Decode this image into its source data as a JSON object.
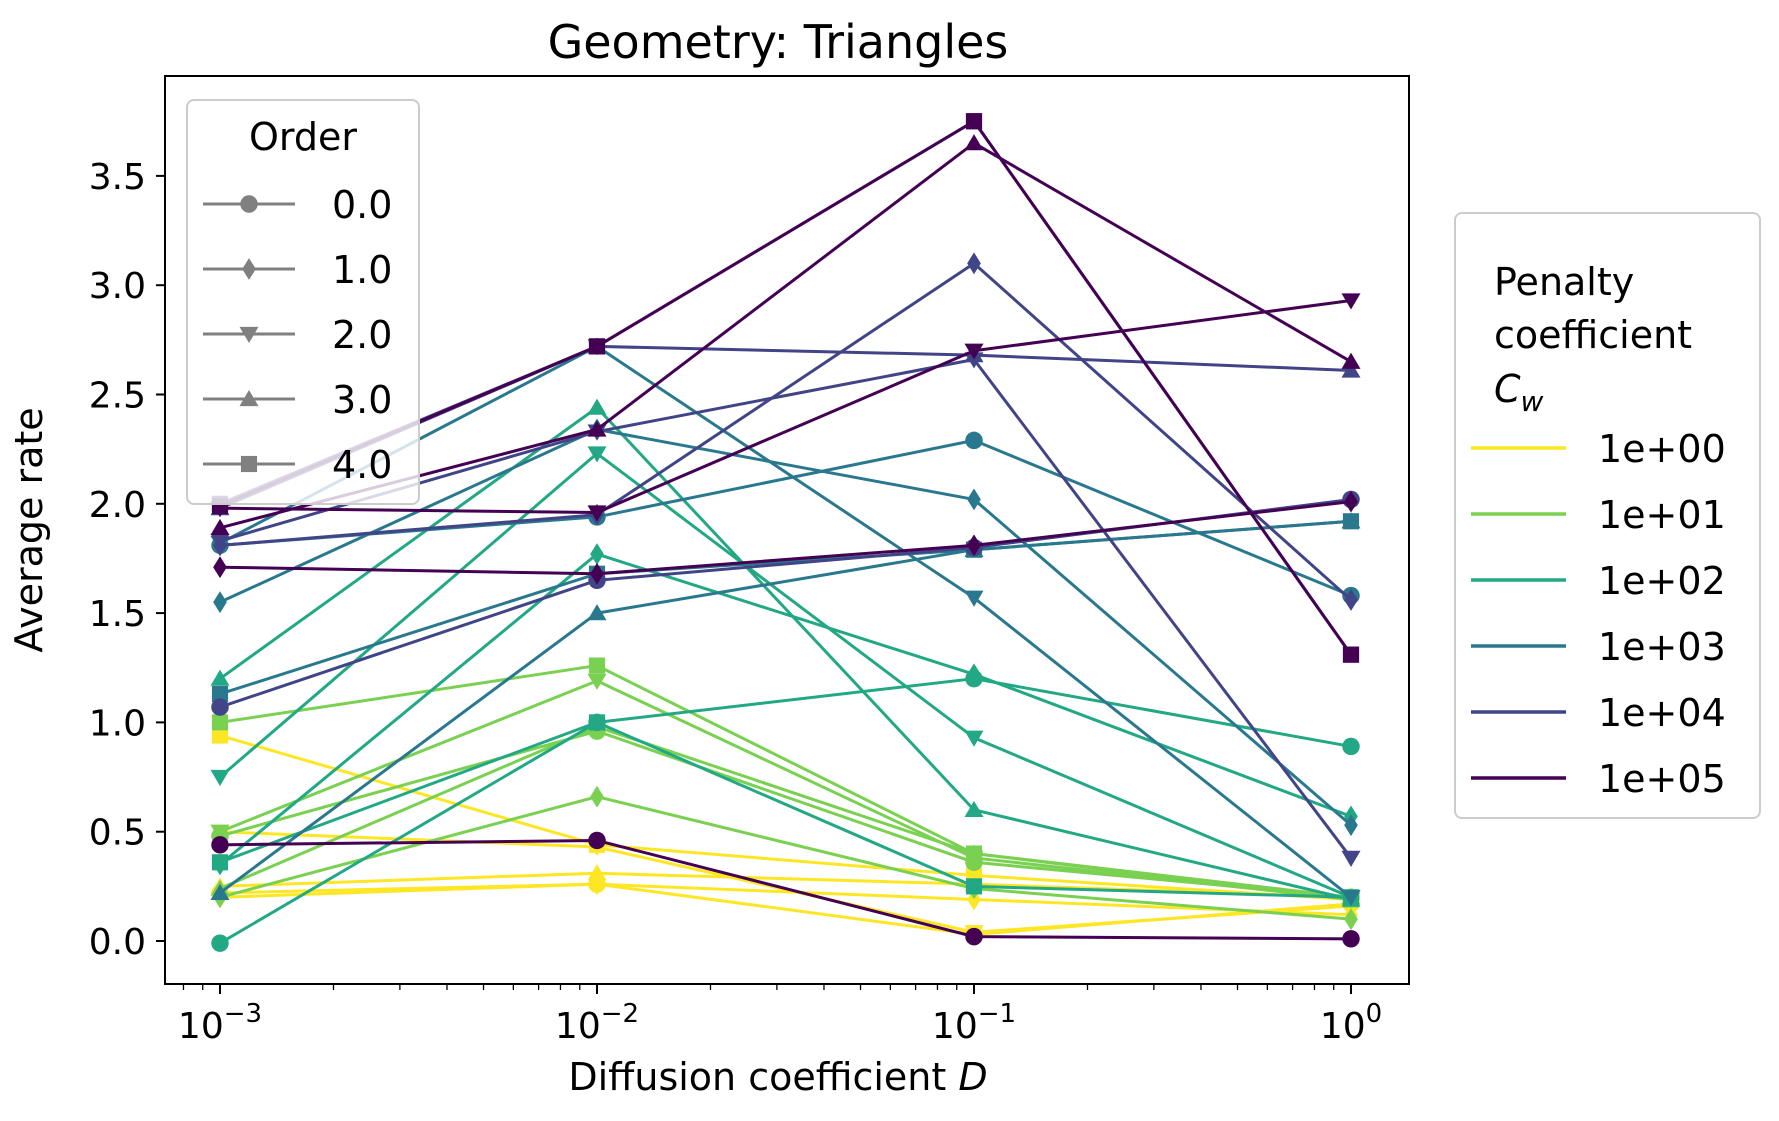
{
  "chart_data": {
    "type": "line",
    "title": "Geometry: Triangles",
    "xlabel": "Diffusion coefficient D",
    "ylabel": "Average rate",
    "x": [
      0.001,
      0.01,
      0.1,
      1
    ],
    "x_scale": "log",
    "x_tick_labels": [
      {
        "base": "10",
        "exp": "−3"
      },
      {
        "base": "10",
        "exp": "−2"
      },
      {
        "base": "10",
        "exp": "−1"
      },
      {
        "base": "10",
        "exp": "0"
      }
    ],
    "ylim": [
      -0.2,
      3.9
    ],
    "y_ticks": [
      "0.0",
      "0.5",
      "1.0",
      "1.5",
      "2.0",
      "2.5",
      "3.0",
      "3.5"
    ],
    "grid": false,
    "legend_order": {
      "title": "Order",
      "placement": "upper left",
      "entries": [
        {
          "label": "0.0",
          "marker": "circle"
        },
        {
          "label": "1.0",
          "marker": "diamond"
        },
        {
          "label": "2.0",
          "marker": "triangle-down"
        },
        {
          "label": "3.0",
          "marker": "triangle-up"
        },
        {
          "label": "4.0",
          "marker": "square"
        }
      ]
    },
    "legend_penalty": {
      "title_lines": [
        "Penalty",
        "coefficient"
      ],
      "title_symbol": "C",
      "title_subscript": "w",
      "placement": "outside right",
      "entries": [
        {
          "label": "1e+00",
          "color": "#fde725"
        },
        {
          "label": "1e+01",
          "color": "#7ad151"
        },
        {
          "label": "1e+02",
          "color": "#22a884"
        },
        {
          "label": "1e+03",
          "color": "#2a788e"
        },
        {
          "label": "1e+04",
          "color": "#414487"
        },
        {
          "label": "1e+05",
          "color": "#440154"
        }
      ]
    },
    "series": [
      {
        "penalty": "1e+00",
        "order": "0.0",
        "values": [
          0.22,
          0.26,
          0.03,
          0.17
        ]
      },
      {
        "penalty": "1e+00",
        "order": "1.0",
        "values": [
          0.2,
          0.26,
          0.19,
          0.12
        ]
      },
      {
        "penalty": "1e+00",
        "order": "2.0",
        "values": [
          0.5,
          0.43,
          0.04,
          0.16
        ]
      },
      {
        "penalty": "1e+00",
        "order": "3.0",
        "values": [
          0.25,
          0.31,
          0.26,
          0.2
        ]
      },
      {
        "penalty": "1e+00",
        "order": "4.0",
        "values": [
          0.94,
          0.44,
          0.3,
          0.19
        ]
      },
      {
        "penalty": "1e+01",
        "order": "0.0",
        "values": [
          0.48,
          0.96,
          0.36,
          0.2
        ]
      },
      {
        "penalty": "1e+01",
        "order": "1.0",
        "values": [
          0.2,
          0.66,
          0.24,
          0.1
        ]
      },
      {
        "penalty": "1e+01",
        "order": "2.0",
        "values": [
          0.5,
          1.19,
          0.38,
          0.19
        ]
      },
      {
        "penalty": "1e+01",
        "order": "3.0",
        "values": [
          0.24,
          0.98,
          0.4,
          0.2
        ]
      },
      {
        "penalty": "1e+01",
        "order": "4.0",
        "values": [
          1.0,
          1.26,
          0.4,
          0.19
        ]
      },
      {
        "penalty": "1e+02",
        "order": "0.0",
        "values": [
          -0.01,
          1.0,
          1.2,
          0.89
        ]
      },
      {
        "penalty": "1e+02",
        "order": "1.0",
        "values": [
          0.35,
          1.77,
          1.22,
          0.57
        ]
      },
      {
        "penalty": "1e+02",
        "order": "2.0",
        "values": [
          0.75,
          2.23,
          0.93,
          0.2
        ]
      },
      {
        "penalty": "1e+02",
        "order": "3.0",
        "values": [
          1.2,
          2.44,
          0.6,
          0.19
        ]
      },
      {
        "penalty": "1e+02",
        "order": "4.0",
        "values": [
          0.36,
          1.0,
          0.25,
          0.2
        ]
      },
      {
        "penalty": "1e+03",
        "order": "0.0",
        "values": [
          1.81,
          1.94,
          2.29,
          1.58
        ]
      },
      {
        "penalty": "1e+03",
        "order": "1.0",
        "values": [
          1.55,
          2.34,
          2.02,
          0.53
        ]
      },
      {
        "penalty": "1e+03",
        "order": "2.0",
        "values": [
          1.82,
          2.72,
          1.57,
          0.2
        ]
      },
      {
        "penalty": "1e+03",
        "order": "3.0",
        "values": [
          0.22,
          1.5,
          1.79,
          1.92
        ]
      },
      {
        "penalty": "1e+03",
        "order": "4.0",
        "values": [
          1.13,
          1.68,
          1.79,
          1.92
        ]
      },
      {
        "penalty": "1e+04",
        "order": "0.0",
        "values": [
          1.07,
          1.65,
          1.8,
          2.02
        ]
      },
      {
        "penalty": "1e+04",
        "order": "1.0",
        "values": [
          1.81,
          1.95,
          3.1,
          1.56
        ]
      },
      {
        "penalty": "1e+04",
        "order": "2.0",
        "values": [
          1.83,
          2.33,
          2.66,
          0.38
        ]
      },
      {
        "penalty": "1e+04",
        "order": "3.0",
        "values": [
          1.98,
          2.72,
          2.68,
          2.61
        ]
      },
      {
        "penalty": "1e+04",
        "order": "4.0",
        "values": [
          2.0,
          2.72,
          3.75,
          1.31
        ]
      },
      {
        "penalty": "1e+05",
        "order": "0.0",
        "values": [
          0.44,
          0.46,
          0.02,
          0.01
        ]
      },
      {
        "penalty": "1e+05",
        "order": "1.0",
        "values": [
          1.71,
          1.68,
          1.81,
          2.01
        ]
      },
      {
        "penalty": "1e+05",
        "order": "2.0",
        "values": [
          1.98,
          1.96,
          2.7,
          2.93
        ]
      },
      {
        "penalty": "1e+05",
        "order": "3.0",
        "values": [
          1.89,
          2.34,
          3.65,
          2.65
        ]
      },
      {
        "penalty": "1e+05",
        "order": "4.0",
        "values": [
          1.99,
          2.72,
          3.75,
          1.31
        ]
      }
    ]
  }
}
